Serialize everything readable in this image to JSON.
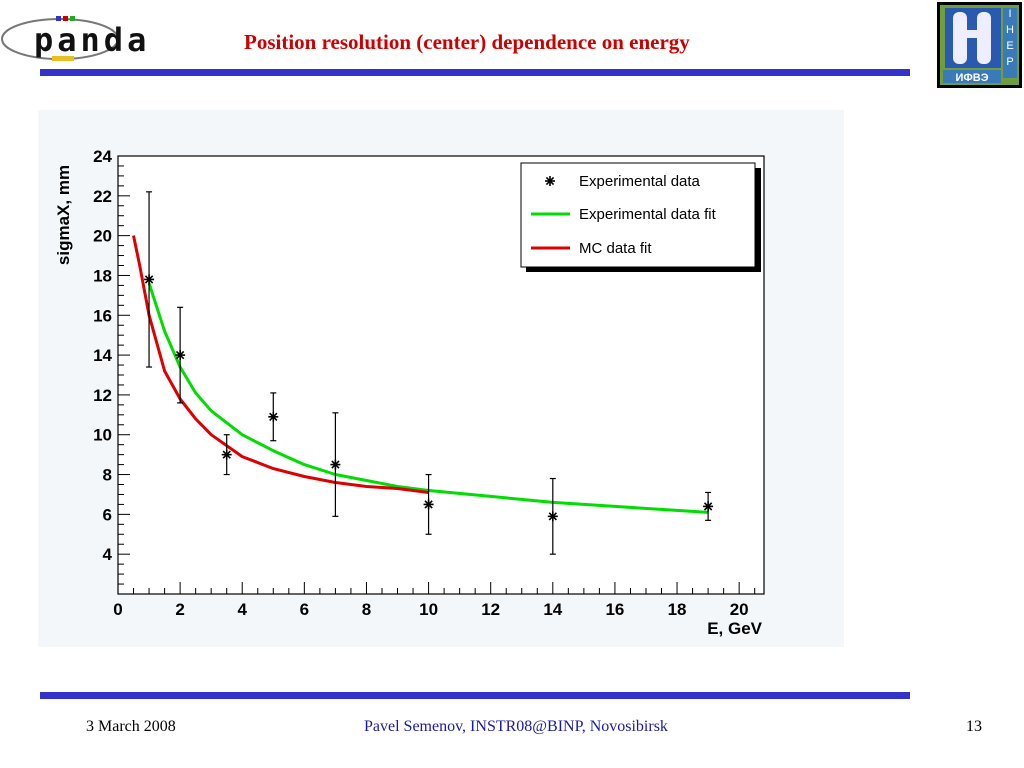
{
  "slide": {
    "title": "Position resolution (center) dependence on energy",
    "rule_color": "#3333cc",
    "title_color": "#cc0000"
  },
  "logos": {
    "left": {
      "text": "panda",
      "icon": "panda-logo"
    },
    "right": {
      "text": "ИФВЭ",
      "vertical_text": "IHEP",
      "icon": "ihep-logo"
    }
  },
  "footer": {
    "date": "3 March  2008",
    "center": "Pavel Semenov, INSTR08@BINP, Novosibirsk",
    "page": "13"
  },
  "chart_data": {
    "type": "scatter",
    "xlabel": "E, GeV",
    "ylabel": "sigmaX, mm",
    "xlim": [
      0,
      20.8
    ],
    "ylim": [
      2,
      24
    ],
    "x_ticks": [
      "0",
      "2",
      "4",
      "6",
      "8",
      "10",
      "12",
      "14",
      "16",
      "18",
      "20"
    ],
    "y_ticks": [
      "4",
      "6",
      "8",
      "10",
      "12",
      "14",
      "16",
      "18",
      "20",
      "22",
      "24"
    ],
    "grid": false,
    "legend_position": "top-right",
    "legend": [
      "Experimental data",
      "Experimental data fit",
      "MC data fit"
    ],
    "points": [
      {
        "x": 1,
        "y": 17.8,
        "err_low": 4.4,
        "err_high": 4.4
      },
      {
        "x": 2,
        "y": 14.0,
        "err_low": 2.4,
        "err_high": 2.4
      },
      {
        "x": 3.5,
        "y": 9.0,
        "err_low": 1.0,
        "err_high": 1.0
      },
      {
        "x": 5,
        "y": 10.9,
        "err_low": 1.2,
        "err_high": 1.2
      },
      {
        "x": 7,
        "y": 8.5,
        "err_low": 2.6,
        "err_high": 2.6
      },
      {
        "x": 10,
        "y": 6.5,
        "err_low": 1.5,
        "err_high": 1.5
      },
      {
        "x": 14,
        "y": 5.9,
        "err_low": 1.9,
        "err_high": 1.9
      },
      {
        "x": 19,
        "y": 6.4,
        "err_low": 0.7,
        "err_high": 0.7
      }
    ],
    "fits": [
      {
        "name": "Experimental data fit",
        "color": "#00dd00",
        "x": [
          1,
          1.5,
          2,
          2.5,
          3,
          4,
          5,
          6,
          7,
          8,
          9,
          10,
          12,
          14,
          16,
          19
        ],
        "y": [
          17.6,
          15.2,
          13.4,
          12.1,
          11.2,
          10.0,
          9.2,
          8.5,
          8.0,
          7.7,
          7.4,
          7.2,
          6.9,
          6.6,
          6.4,
          6.1
        ]
      },
      {
        "name": "MC data fit",
        "color": "#dd0000",
        "x": [
          0.5,
          0.7,
          1,
          1.5,
          2,
          2.5,
          3,
          4,
          5,
          6,
          7,
          8,
          9,
          10
        ],
        "y": [
          20.0,
          18.5,
          16.0,
          13.2,
          11.8,
          10.8,
          10.0,
          8.9,
          8.3,
          7.9,
          7.6,
          7.4,
          7.3,
          7.1
        ]
      }
    ]
  }
}
